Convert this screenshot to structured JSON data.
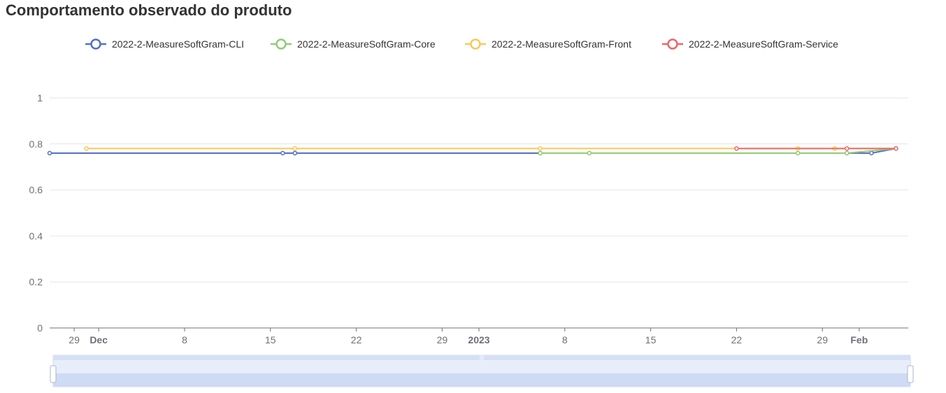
{
  "title": "Comportamento observado do produto",
  "chart_data": {
    "type": "line",
    "title": "Comportamento observado do produto",
    "xlabel": "",
    "ylabel": "",
    "ylim": [
      0,
      1
    ],
    "yticks": [
      "0",
      "0.2",
      "0.4",
      "0.6",
      "0.8",
      "1"
    ],
    "xlim": [
      "2022-11-27",
      "2023-02-05"
    ],
    "xticks": [
      {
        "date": "2022-11-29",
        "label": "29",
        "bold": false
      },
      {
        "date": "2022-12-01",
        "label": "Dec",
        "bold": true
      },
      {
        "date": "2022-12-08",
        "label": "8",
        "bold": false
      },
      {
        "date": "2022-12-15",
        "label": "15",
        "bold": false
      },
      {
        "date": "2022-12-22",
        "label": "22",
        "bold": false
      },
      {
        "date": "2022-12-29",
        "label": "29",
        "bold": false
      },
      {
        "date": "2023-01-01",
        "label": "2023",
        "bold": true
      },
      {
        "date": "2023-01-08",
        "label": "8",
        "bold": false
      },
      {
        "date": "2023-01-15",
        "label": "15",
        "bold": false
      },
      {
        "date": "2023-01-22",
        "label": "22",
        "bold": false
      },
      {
        "date": "2023-01-29",
        "label": "29",
        "bold": false
      },
      {
        "date": "2023-02-01",
        "label": "Feb",
        "bold": true
      }
    ],
    "grid": true,
    "legend_position": "top-center",
    "series": [
      {
        "name": "2022-2-MeasureSoftGram-CLI",
        "color": "#5470c6",
        "points": [
          {
            "x": "2022-11-27",
            "y": 0.76
          },
          {
            "x": "2022-12-16",
            "y": 0.76
          },
          {
            "x": "2022-12-17",
            "y": 0.76
          },
          {
            "x": "2022-12-17",
            "y": 0.76
          },
          {
            "x": "2023-01-06",
            "y": 0.76
          },
          {
            "x": "2023-01-31",
            "y": 0.76
          },
          {
            "x": "2023-02-02",
            "y": 0.76
          },
          {
            "x": "2023-02-04",
            "y": 0.78
          }
        ]
      },
      {
        "name": "2022-2-MeasureSoftGram-Core",
        "color": "#91cc75",
        "points": [
          {
            "x": "2023-01-06",
            "y": 0.76
          },
          {
            "x": "2023-01-10",
            "y": 0.76
          },
          {
            "x": "2023-01-10",
            "y": 0.76
          },
          {
            "x": "2023-01-27",
            "y": 0.76
          },
          {
            "x": "2023-01-27",
            "y": 0.76
          },
          {
            "x": "2023-01-31",
            "y": 0.76
          },
          {
            "x": "2023-02-04",
            "y": 0.78
          }
        ]
      },
      {
        "name": "2022-2-MeasureSoftGram-Front",
        "color": "#fac858",
        "points": [
          {
            "x": "2022-11-30",
            "y": 0.78
          },
          {
            "x": "2022-12-17",
            "y": 0.78
          },
          {
            "x": "2022-12-17",
            "y": 0.78
          },
          {
            "x": "2023-01-06",
            "y": 0.78
          },
          {
            "x": "2023-01-27",
            "y": 0.78
          },
          {
            "x": "2023-01-30",
            "y": 0.78
          },
          {
            "x": "2023-01-31",
            "y": 0.78
          },
          {
            "x": "2023-02-04",
            "y": 0.78
          }
        ]
      },
      {
        "name": "2022-2-MeasureSoftGram-Service",
        "color": "#ee6666",
        "points": [
          {
            "x": "2023-01-22",
            "y": 0.78
          },
          {
            "x": "2023-01-31",
            "y": 0.78
          },
          {
            "x": "2023-02-04",
            "y": 0.78
          }
        ]
      }
    ],
    "data_zoom": {
      "start": 0,
      "end": 100
    }
  }
}
